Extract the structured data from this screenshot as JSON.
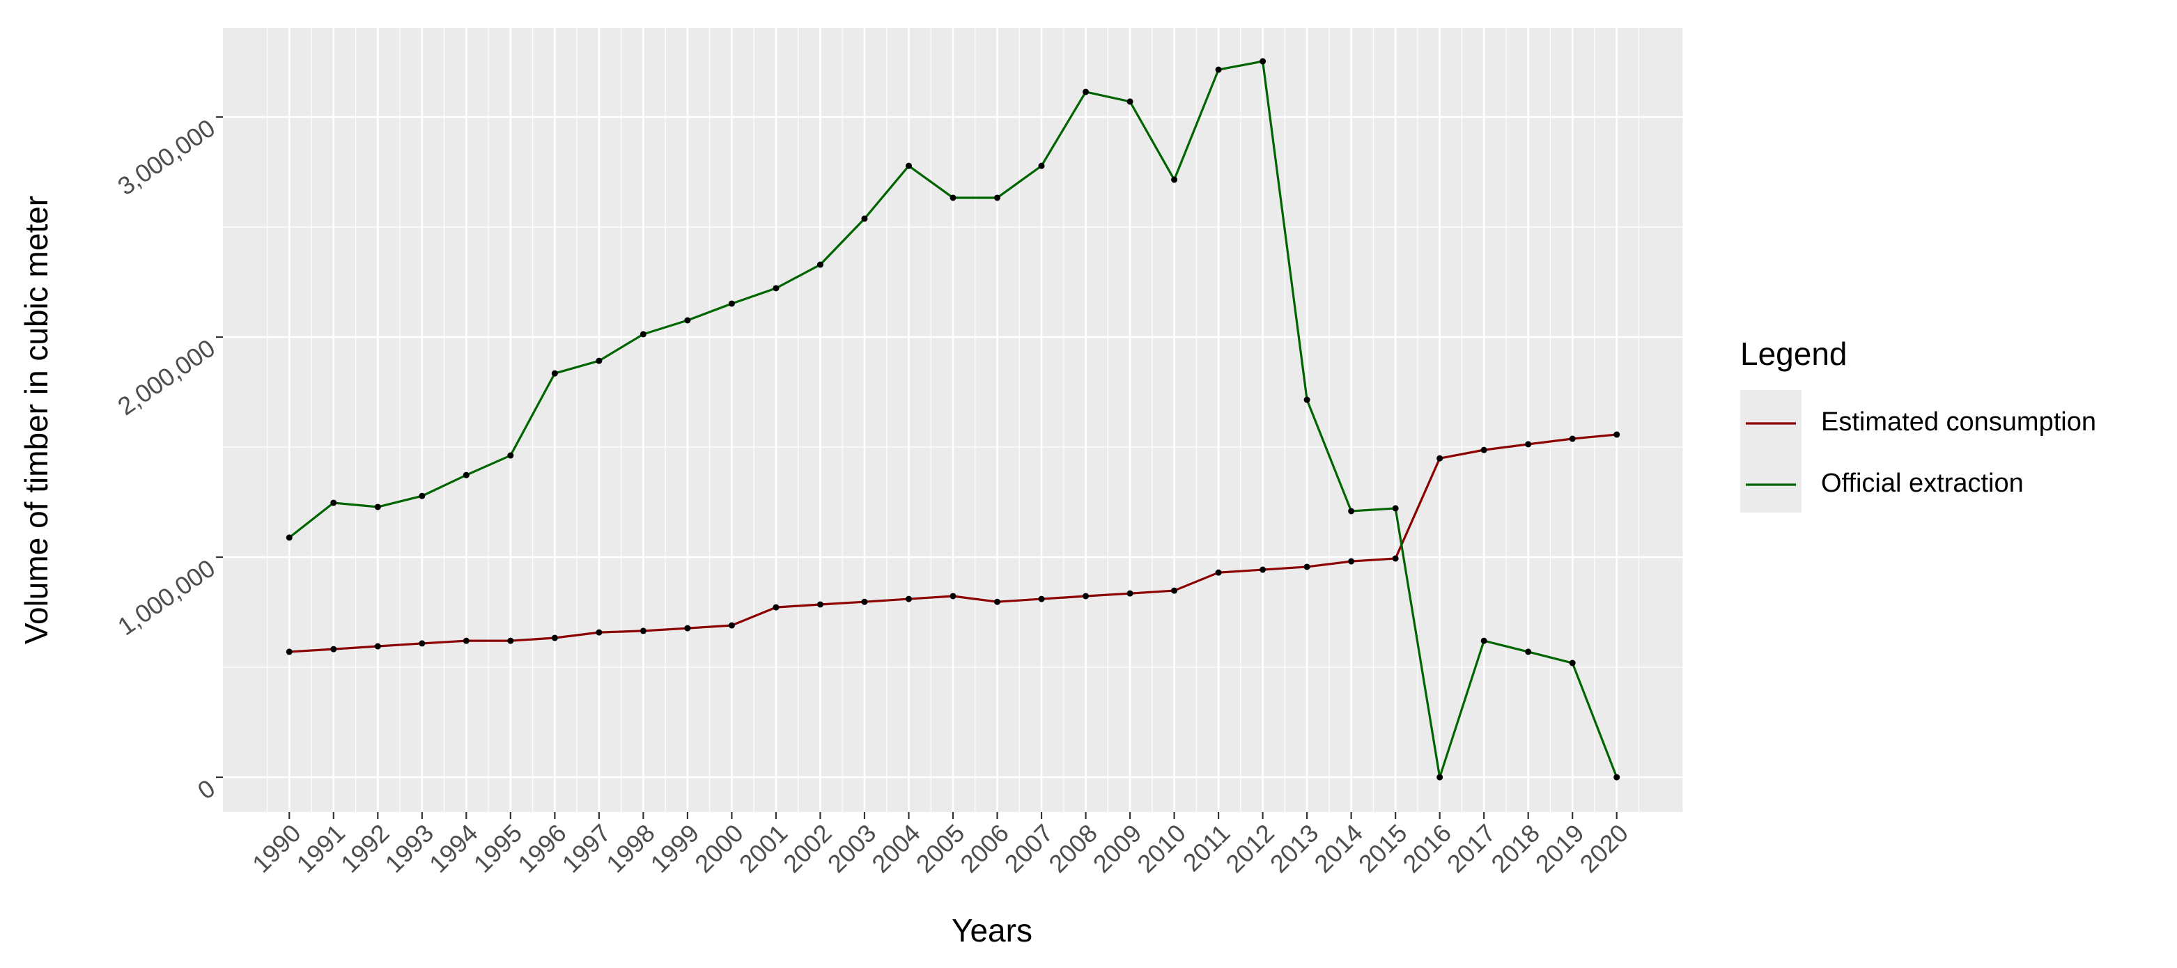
{
  "chart_data": {
    "type": "line",
    "x_label": "Years",
    "y_label": "Volume of timber in cubic meter",
    "legend_title": "Legend",
    "legend_position": "right",
    "grid": true,
    "minor_grid": true,
    "point_color": "#000000",
    "x": [
      1990,
      1991,
      1992,
      1993,
      1994,
      1995,
      1996,
      1997,
      1998,
      1999,
      2000,
      2001,
      2002,
      2003,
      2004,
      2005,
      2006,
      2007,
      2008,
      2009,
      2010,
      2011,
      2012,
      2013,
      2014,
      2015,
      2016,
      2017,
      2018,
      2019,
      2020
    ],
    "xlim": [
      1988.5,
      2021.5
    ],
    "xticks": [
      1990,
      1991,
      1992,
      1993,
      1994,
      1995,
      1996,
      1997,
      1998,
      1999,
      2000,
      2001,
      2002,
      2003,
      2004,
      2005,
      2006,
      2007,
      2008,
      2009,
      2010,
      2011,
      2012,
      2013,
      2014,
      2015,
      2016,
      2017,
      2018,
      2019,
      2020
    ],
    "ylim": [
      -158000,
      3405000
    ],
    "yticks": [
      0,
      {
        "value": 1000000,
        "label": "1,000,000"
      },
      {
        "value": 2000000,
        "label": "2,000,000"
      },
      {
        "value": 3000000,
        "label": "3,000,000"
      }
    ],
    "series": [
      {
        "name": "Estimated consumption",
        "color": "#8b0000",
        "values": [
          570000,
          582000,
          595000,
          608000,
          620000,
          620000,
          633000,
          658000,
          665000,
          677000,
          690000,
          772000,
          785000,
          797000,
          810000,
          823000,
          797000,
          810000,
          823000,
          835000,
          848000,
          930000,
          943000,
          956000,
          981000,
          994000,
          1449000,
          1487000,
          1513000,
          1538000,
          1557000
        ]
      },
      {
        "name": "Official extraction",
        "color": "#006400",
        "values": [
          1089000,
          1247000,
          1228000,
          1278000,
          1373000,
          1462000,
          1835000,
          1892000,
          2013000,
          2076000,
          2152000,
          2222000,
          2329000,
          2538000,
          2778000,
          2633000,
          2633000,
          2778000,
          3114000,
          3070000,
          2715000,
          3215000,
          3253000,
          1715000,
          1209000,
          1222000,
          0,
          620000,
          570000,
          519000,
          0
        ]
      }
    ]
  }
}
